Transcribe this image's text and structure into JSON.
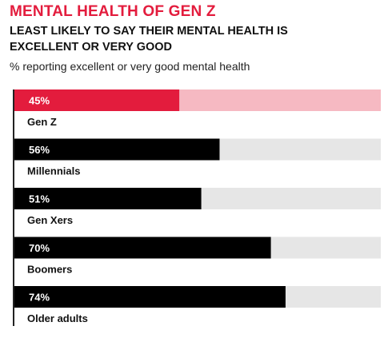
{
  "title": "MENTAL HEALTH OF GEN Z",
  "subtitle": "LEAST LIKELY TO SAY THEIR MENTAL HEALTH IS EXCELLENT OR VERY GOOD",
  "note": "% reporting excellent or very good mental health",
  "colors": {
    "highlight": "#e31c3d",
    "highlight_track": "#f6b9c2",
    "bar": "#000000",
    "track": "#e6e6e6"
  },
  "chart_data": {
    "type": "bar",
    "orientation": "horizontal",
    "categories": [
      "Gen Z",
      "Millennials",
      "Gen Xers",
      "Boomers",
      "Older adults"
    ],
    "values": [
      45,
      56,
      51,
      70,
      74
    ],
    "value_labels": [
      "45%",
      "56%",
      "51%",
      "70%",
      "74%"
    ],
    "highlighted": "Gen Z",
    "xlim": [
      0,
      100
    ],
    "title": "MENTAL HEALTH OF GEN Z",
    "subtitle": "LEAST LIKELY TO SAY THEIR MENTAL HEALTH IS EXCELLENT OR VERY GOOD",
    "grid": false,
    "legend": "none"
  }
}
